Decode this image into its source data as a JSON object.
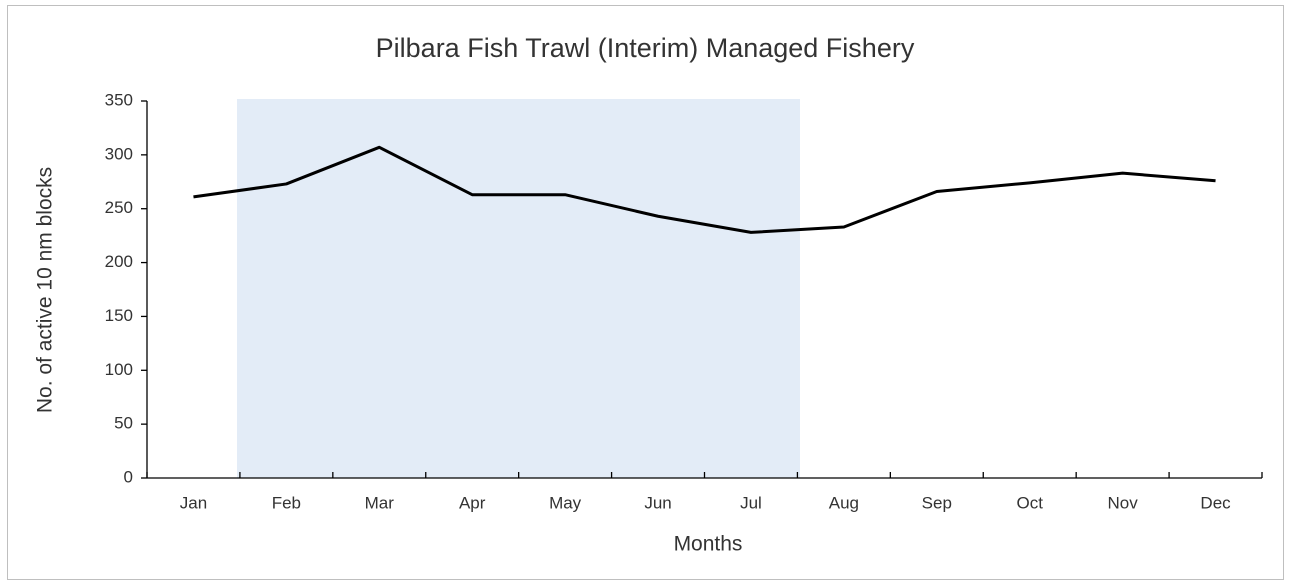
{
  "chart_data": {
    "type": "line",
    "title": "Pilbara Fish Trawl (Interim) Managed Fishery",
    "x_label": "Months",
    "y_label": "No. of active 10 nm blocks",
    "categories": [
      "Jan",
      "Feb",
      "Mar",
      "Apr",
      "May",
      "Jun",
      "Jul",
      "Aug",
      "Sep",
      "Oct",
      "Nov",
      "Dec"
    ],
    "values": [
      261,
      273,
      307,
      263,
      263,
      243,
      228,
      233,
      266,
      274,
      283,
      276
    ],
    "color": "#000000",
    "ylim": [
      0,
      350
    ],
    "yticks": [
      0,
      50,
      100,
      150,
      200,
      250,
      300,
      350
    ],
    "grid": false
  }
}
